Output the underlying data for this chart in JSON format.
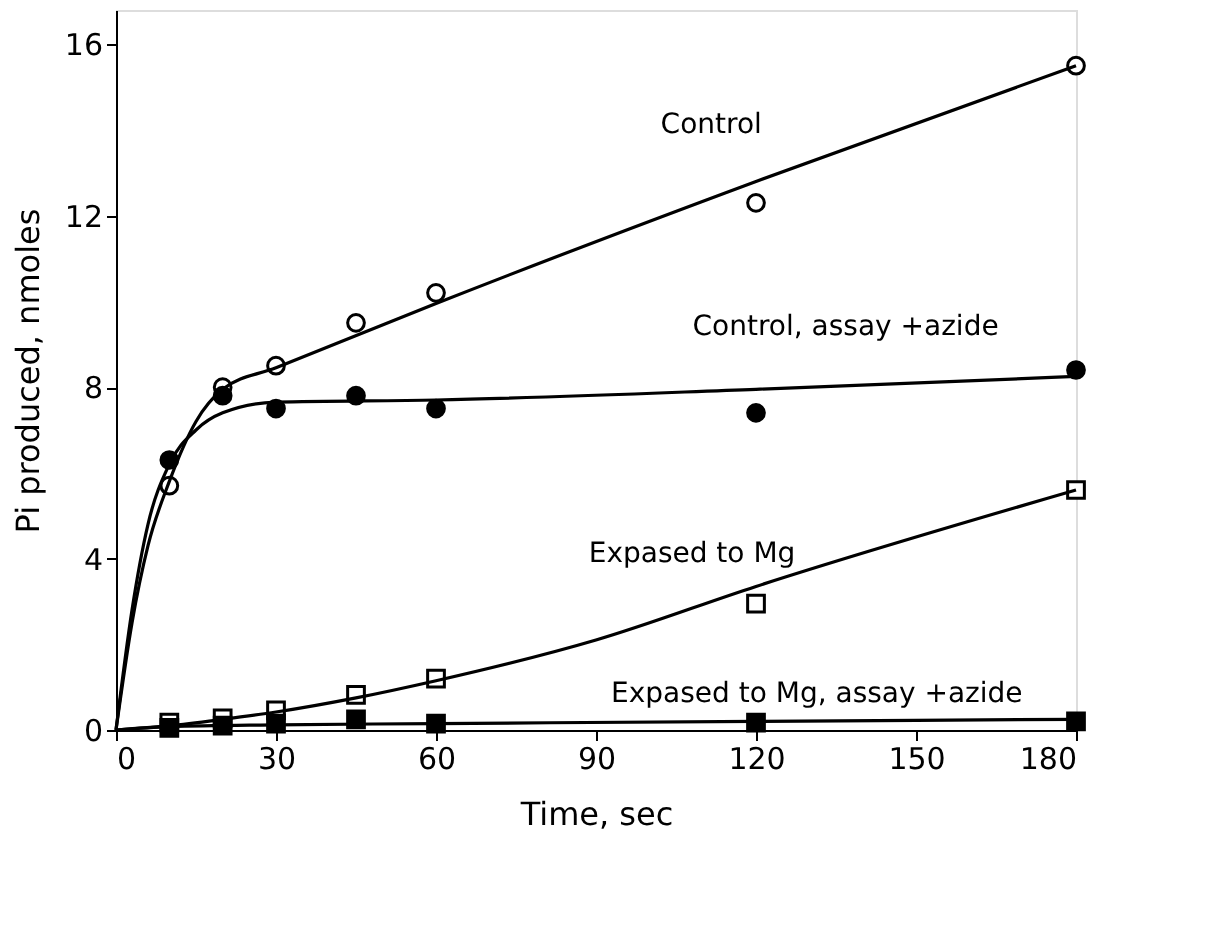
{
  "chart_data": {
    "type": "scatter",
    "xlabel": "Time, sec",
    "ylabel": "Pi produced, nmoles",
    "xlim": [
      0,
      180
    ],
    "ylim": [
      0,
      16.8
    ],
    "xticks": [
      0,
      30,
      60,
      90,
      120,
      150,
      180
    ],
    "yticks": [
      0,
      4,
      8,
      12,
      16
    ],
    "series": [
      {
        "marker": "circle",
        "color": "#ffffff",
        "x": [
          10,
          20,
          30,
          45,
          60,
          120,
          180
        ],
        "values": [
          5.7,
          8.0,
          8.5,
          9.5,
          10.2,
          12.3,
          15.5
        ]
      },
      {
        "marker": "circle",
        "color": "#000000",
        "x": [
          10,
          20,
          30,
          45,
          60,
          120,
          180
        ],
        "values": [
          6.3,
          7.8,
          7.5,
          7.8,
          7.5,
          7.4,
          8.4
        ]
      },
      {
        "marker": "square",
        "color": "#ffffff",
        "x": [
          10,
          20,
          30,
          45,
          60,
          120,
          180
        ],
        "values": [
          0.17,
          0.27,
          0.46,
          0.82,
          1.2,
          2.95,
          5.6
        ]
      },
      {
        "marker": "square",
        "color": "#000000",
        "x": [
          10,
          20,
          30,
          45,
          60,
          120,
          180
        ],
        "values": [
          0.05,
          0.1,
          0.15,
          0.25,
          0.15,
          0.17,
          0.2
        ]
      },
      {
        "type": "line",
        "marker": "none",
        "line_style": "solid",
        "color": "#000000",
        "x": [
          0,
          3,
          6,
          10,
          15,
          20,
          30,
          60,
          120,
          180
        ],
        "values": [
          0,
          2.5,
          4.3,
          5.8,
          7.2,
          7.95,
          8.45,
          9.95,
          12.8,
          15.5
        ]
      },
      {
        "type": "line",
        "marker": "none",
        "line_style": "solid",
        "color": "#000000",
        "x": [
          0,
          3,
          6,
          10,
          15,
          20,
          30,
          60,
          120,
          180
        ],
        "values": [
          0,
          2.8,
          4.8,
          6.2,
          7.0,
          7.4,
          7.65,
          7.7,
          7.95,
          8.25
        ]
      },
      {
        "type": "line",
        "marker": "none",
        "line_style": "solid",
        "color": "#000000",
        "x": [
          0,
          10,
          20,
          30,
          45,
          60,
          90,
          120,
          180
        ],
        "values": [
          0,
          0.1,
          0.25,
          0.42,
          0.75,
          1.15,
          2.1,
          3.35,
          5.6
        ]
      },
      {
        "type": "line",
        "marker": "none",
        "line_style": "solid",
        "color": "#000000",
        "x": [
          0,
          10,
          30,
          60,
          120,
          180
        ],
        "values": [
          0,
          0.08,
          0.12,
          0.15,
          0.2,
          0.25
        ]
      }
    ],
    "annotations": [
      "Control",
      "Control, assay +azide",
      "Expased to Mg",
      "Expased to Mg, assay +azide"
    ]
  }
}
